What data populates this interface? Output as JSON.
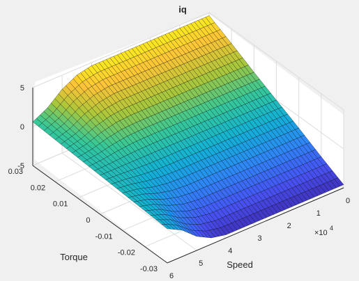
{
  "chart_data": {
    "type": "surface",
    "title": "iq",
    "xlabel": "Speed",
    "ylabel": "Torque",
    "zlabel": "",
    "x_multiplier": "×10",
    "x_multiplier_exp": "4",
    "x_ticks": [
      "0",
      "1",
      "2",
      "3",
      "4",
      "5",
      "6"
    ],
    "y_ticks": [
      "0.03",
      "0.02",
      "0.01",
      "0",
      "-0.01",
      "-0.02",
      "-0.03"
    ],
    "z_ticks": [
      "5",
      "0",
      "-5"
    ],
    "xlim": [
      0,
      60000
    ],
    "ylim": [
      -0.03,
      0.03
    ],
    "zlim": [
      -5,
      5
    ],
    "grid": true,
    "colormap": "parula",
    "description_of_surface": "",
    "samples": {
      "speed": [
        0,
        5000,
        10000,
        15000,
        20000,
        25000,
        30000,
        35000,
        40000,
        45000,
        50000,
        55000,
        60000
      ],
      "torque": [
        -0.03,
        -0.02,
        -0.01,
        0,
        0.01,
        0.02,
        0.03
      ],
      "iq": [
        [
          -4.6,
          -4.6,
          -4.6,
          -4.6,
          -4.6,
          -4.6,
          -4.6,
          -4.6,
          -4.6,
          -4.2,
          -3.2,
          -1.6,
          -0.6
        ],
        [
          -3.1,
          -3.1,
          -3.1,
          -3.1,
          -3.1,
          -3.1,
          -3.1,
          -3.1,
          -3.1,
          -2.8,
          -2.1,
          -1.0,
          -0.4
        ],
        [
          -1.5,
          -1.5,
          -1.5,
          -1.5,
          -1.5,
          -1.5,
          -1.5,
          -1.5,
          -1.5,
          -1.4,
          -1.05,
          -0.5,
          -0.2
        ],
        [
          0,
          0,
          0,
          0,
          0,
          0,
          0,
          0,
          0,
          0,
          0,
          0,
          0
        ],
        [
          1.5,
          1.5,
          1.5,
          1.5,
          1.5,
          1.5,
          1.5,
          1.5,
          1.5,
          1.4,
          1.05,
          0.5,
          0.2
        ],
        [
          3.1,
          3.1,
          3.1,
          3.1,
          3.1,
          3.1,
          3.1,
          3.1,
          3.1,
          2.8,
          2.1,
          1.0,
          0.4
        ],
        [
          4.6,
          4.6,
          4.6,
          4.6,
          4.6,
          4.6,
          4.6,
          4.6,
          4.6,
          4.2,
          3.2,
          1.6,
          0.6
        ]
      ]
    }
  }
}
